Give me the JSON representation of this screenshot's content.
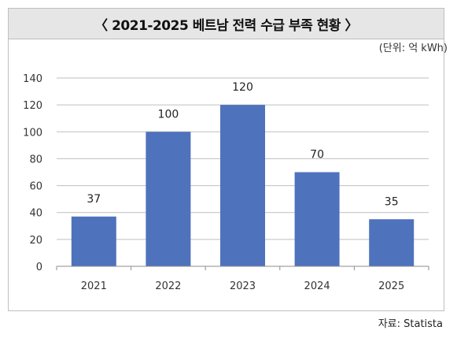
{
  "title": "〈 2021-2025 베트남 전력 수급 부족 현황 〉",
  "unit_label": "(단위: 억 kWh)",
  "source": "자료: Statista",
  "colors": {
    "bar": "#4f72bd",
    "grid": "#bfbfbf",
    "axis": "#8c8c8c",
    "title_bg": "#e6e6e6"
  },
  "chart_data": {
    "type": "bar",
    "categories": [
      "2021",
      "2022",
      "2023",
      "2024",
      "2025"
    ],
    "values": [
      37,
      100,
      120,
      70,
      35
    ],
    "title": "〈 2021-2025 베트남 전력 수급 부족 현황 〉",
    "xlabel": "",
    "ylabel": "",
    "ylim": [
      0,
      140
    ],
    "yticks": [
      0,
      20,
      40,
      60,
      80,
      100,
      120,
      140
    ],
    "grid": true,
    "data_labels": true,
    "legend": "none"
  }
}
